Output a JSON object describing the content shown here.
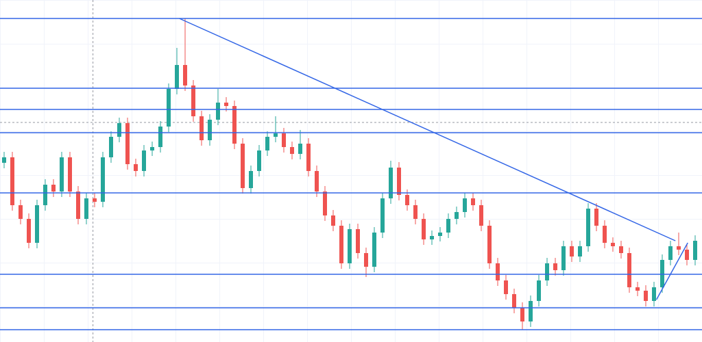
{
  "chart_data": {
    "type": "candlestick",
    "ylim": [
      0,
      500
    ],
    "up_color": "#26a69a",
    "down_color": "#ef5350",
    "line_color": "#3366e6",
    "open": [
      262,
      270,
      200,
      180,
      145,
      200,
      230,
      220,
      270,
      220,
      180,
      210,
      205,
      270,
      300,
      320,
      260,
      250,
      280,
      285,
      315,
      370,
      405,
      375,
      330,
      295,
      325,
      350,
      345,
      290,
      225,
      250,
      280,
      300,
      305,
      285,
      275,
      290,
      250,
      220,
      185,
      170,
      115,
      165,
      130,
      110,
      160,
      210,
      255,
      215,
      200,
      180,
      150,
      155,
      160,
      180,
      190,
      210,
      200,
      170,
      115,
      90,
      70,
      50,
      30,
      60,
      90,
      115,
      105,
      140,
      125,
      140,
      195,
      170,
      145,
      140,
      130,
      80,
      75,
      60,
      80,
      120,
      140,
      135,
      120
    ],
    "high": [
      278,
      278,
      208,
      188,
      208,
      238,
      238,
      278,
      278,
      228,
      218,
      218,
      278,
      308,
      328,
      328,
      268,
      288,
      293,
      323,
      378,
      430,
      473,
      383,
      338,
      333,
      370,
      358,
      353,
      298,
      258,
      288,
      308,
      330,
      313,
      293,
      310,
      298,
      258,
      228,
      193,
      178,
      173,
      173,
      138,
      168,
      218,
      265,
      263,
      223,
      208,
      188,
      163,
      168,
      188,
      198,
      218,
      218,
      208,
      178,
      123,
      98,
      78,
      58,
      68,
      98,
      123,
      123,
      148,
      148,
      148,
      203,
      203,
      178,
      153,
      148,
      138,
      88,
      83,
      88,
      128,
      148,
      160,
      143,
      156
    ],
    "low": [
      254,
      192,
      172,
      137,
      137,
      192,
      212,
      212,
      212,
      172,
      172,
      197,
      197,
      262,
      292,
      252,
      242,
      242,
      272,
      277,
      307,
      362,
      367,
      322,
      287,
      287,
      317,
      337,
      282,
      217,
      217,
      242,
      272,
      292,
      277,
      267,
      267,
      242,
      212,
      177,
      162,
      107,
      107,
      122,
      95,
      102,
      152,
      202,
      207,
      192,
      172,
      142,
      142,
      147,
      152,
      172,
      182,
      192,
      162,
      107,
      82,
      62,
      42,
      18,
      22,
      52,
      82,
      97,
      97,
      117,
      117,
      132,
      162,
      137,
      132,
      122,
      72,
      67,
      52,
      52,
      72,
      112,
      127,
      112,
      112
    ],
    "close": [
      270,
      200,
      180,
      145,
      200,
      230,
      220,
      270,
      220,
      180,
      210,
      205,
      270,
      300,
      320,
      260,
      250,
      280,
      285,
      315,
      370,
      405,
      375,
      330,
      295,
      325,
      350,
      345,
      290,
      225,
      250,
      280,
      300,
      305,
      285,
      275,
      290,
      250,
      220,
      185,
      170,
      115,
      165,
      130,
      110,
      160,
      210,
      255,
      215,
      200,
      180,
      150,
      155,
      160,
      180,
      190,
      210,
      200,
      170,
      115,
      90,
      70,
      50,
      30,
      60,
      90,
      115,
      105,
      140,
      125,
      140,
      195,
      170,
      145,
      140,
      130,
      80,
      75,
      60,
      80,
      120,
      140,
      135,
      120,
      148
    ],
    "horizontal_lines": [
      473,
      371,
      340,
      306,
      218,
      99,
      50,
      18
    ],
    "price_line": 321,
    "vertical_line": 10.8,
    "trend_lines": [
      {
        "start": [
          21.3,
          473
        ],
        "end": [
          81.6,
          148
        ]
      },
      {
        "start": [
          79.3,
          62
        ],
        "end": [
          83.1,
          145
        ]
      }
    ]
  }
}
